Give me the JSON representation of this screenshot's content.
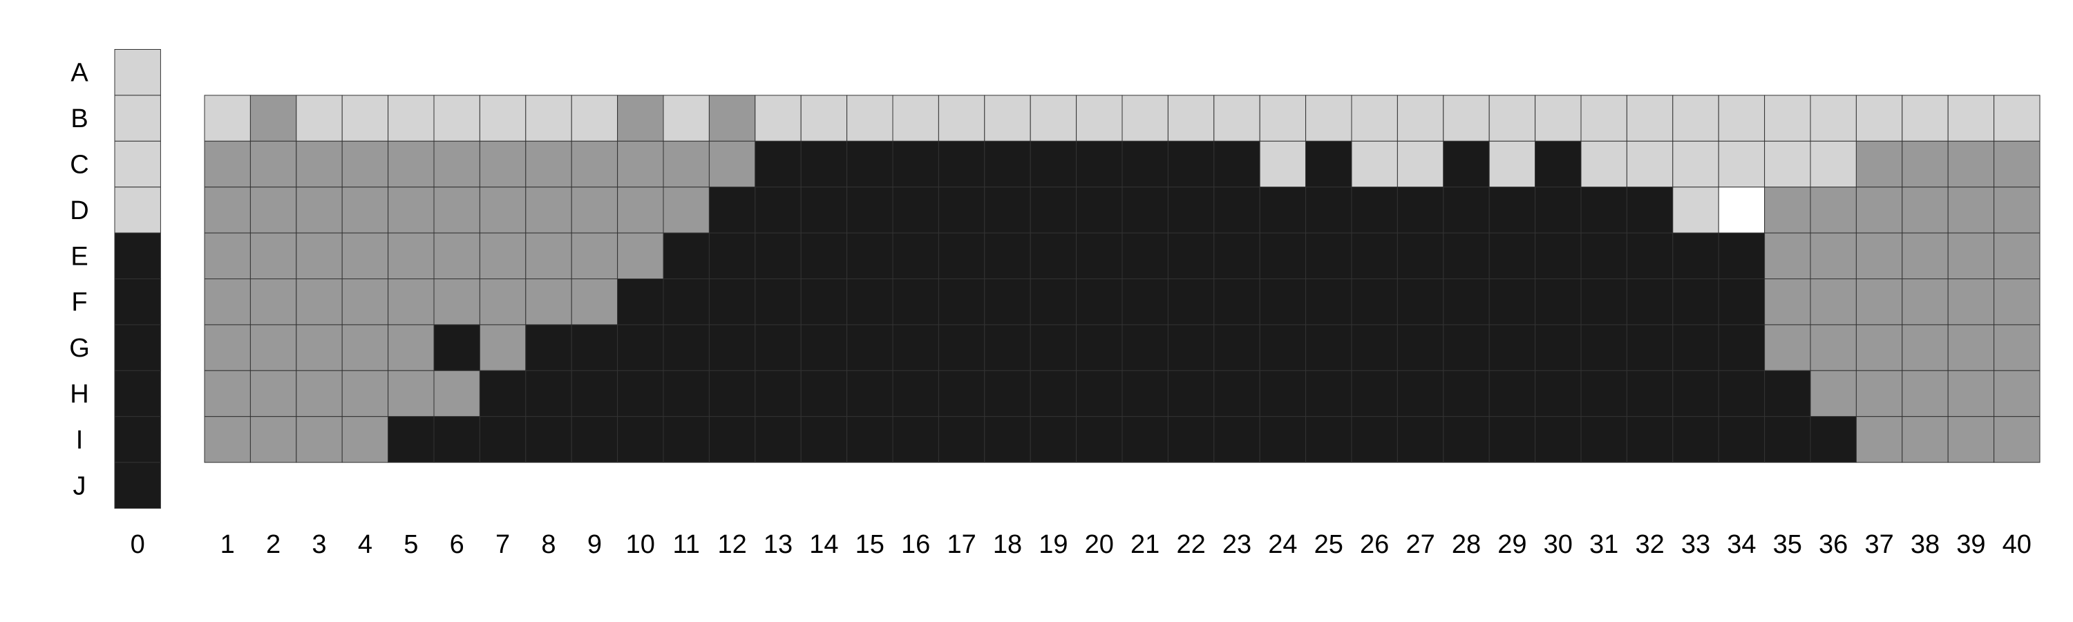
{
  "chart_data": {
    "type": "heatmap",
    "title": "",
    "xlabel": "",
    "ylabel": "",
    "rows": [
      "A",
      "B",
      "C",
      "D",
      "E",
      "F",
      "G",
      "H",
      "I",
      "J"
    ],
    "columns": [
      "1",
      "2",
      "3",
      "4",
      "5",
      "6",
      "7",
      "8",
      "9",
      "10",
      "11",
      "12",
      "13",
      "14",
      "15",
      "16",
      "17",
      "18",
      "19",
      "20",
      "21",
      "22",
      "23",
      "24",
      "25",
      "26",
      "27",
      "28",
      "29",
      "30",
      "31",
      "32",
      "33",
      "34",
      "35",
      "36",
      "37",
      "38",
      "39",
      "40"
    ],
    "key_column_label": "0",
    "key_column": [
      "L",
      "L",
      "L",
      "L",
      "K",
      "K",
      "K",
      "K",
      "K",
      "K"
    ],
    "grid_rows": [
      "B",
      "C",
      "D",
      "E",
      "F",
      "G",
      "H",
      "I"
    ],
    "grid": [
      "LMLLLLLLLMLMLLLLLLLLLLLLLLLLLLLLLLLLLLLL",
      "MMMMMMMMMMMMKKKKKKKKKKKLKLLKLKLLLLLLMMMM",
      "MMMMMMMMMMMKKKKKKKKKKKKKKKKKKKKKLWMMMMMM",
      "MMMMMMMMMMKKKKKKKKKKKKKKKKKKKKKKKKMMMMMM",
      "MMMMMMMMMKKKKKKKKKKKKKKKKKKKKKKKKKMMMMMM",
      "MMMMMKMKKKKKKKKKKKKKKKKKKKKKKKKKKKMMMMMM",
      "MMMMMMKKKKKKKKKKKKKKKKKKKKKKKKKKKKKMMMMM",
      "MMMMKKKKKKKKKKKKKKKKKKKKKKKKKKKKKKKKMMMM"
    ],
    "legend_codes": {
      "K": "#1a1a1a",
      "M": "#999999",
      "L": "#d4d4d4",
      "W": "#ffffff"
    }
  }
}
